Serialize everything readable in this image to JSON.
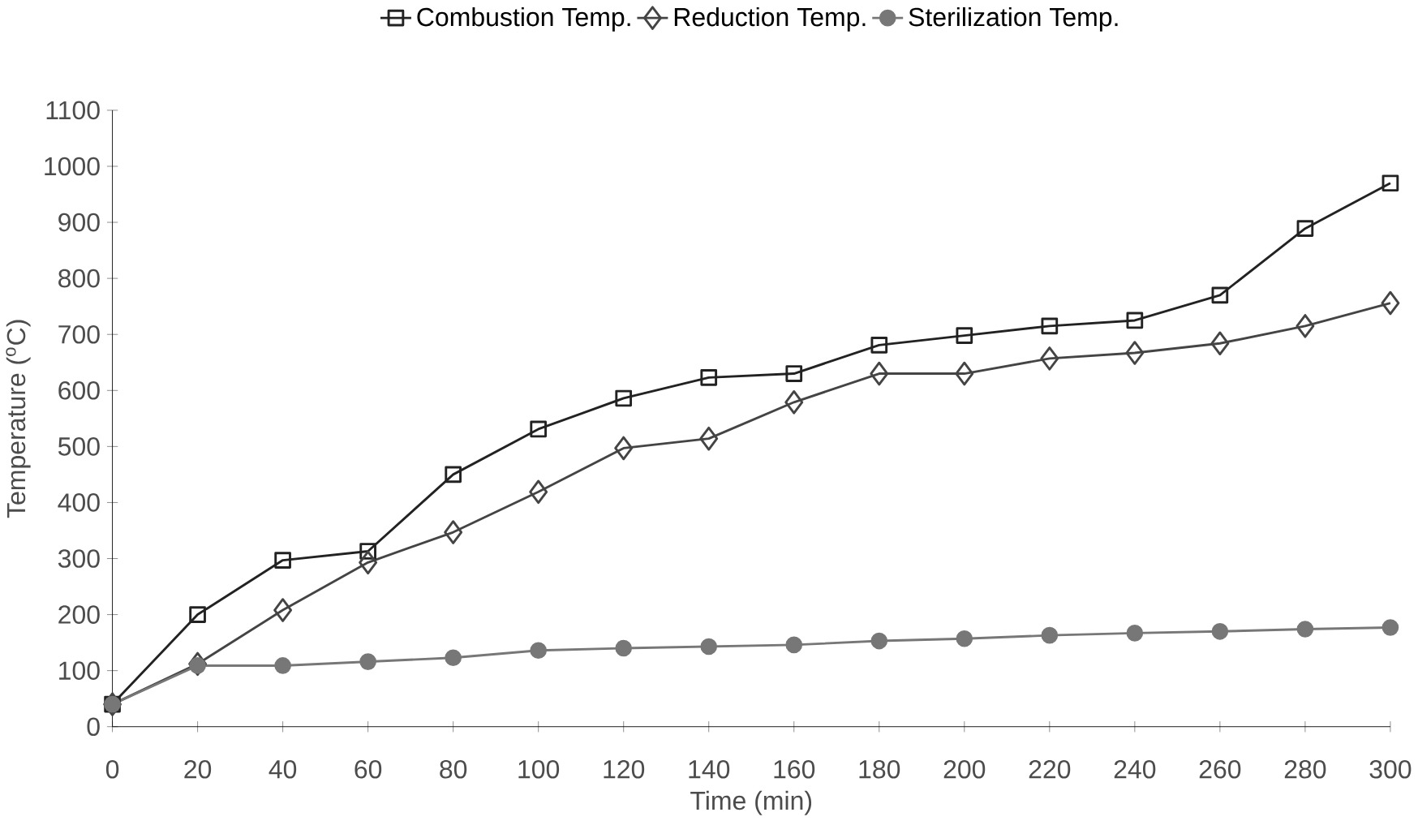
{
  "chart_data": {
    "type": "line",
    "xlabel": "Time (min)",
    "ylabel": "Temperature ($^{o}$C)",
    "x": [
      0,
      20,
      40,
      60,
      80,
      100,
      120,
      140,
      160,
      180,
      200,
      220,
      240,
      260,
      280,
      300
    ],
    "series": [
      {
        "name": "Combustion Temp.",
        "color": "#222222",
        "marker": "square",
        "values": [
          40,
          200,
          297,
          313,
          450,
          531,
          586,
          623,
          630,
          681,
          698,
          715,
          725,
          770,
          889,
          970
        ]
      },
      {
        "name": "Reduction Temp.",
        "color": "#444444",
        "marker": "diamond",
        "values": [
          40,
          112,
          208,
          293,
          347,
          419,
          497,
          514,
          579,
          630,
          630,
          657,
          667,
          684,
          715,
          756
        ]
      },
      {
        "name": "Sterilization Temp.",
        "color": "#777777",
        "marker": "circle",
        "values": [
          40,
          109,
          109,
          116,
          123,
          136,
          140,
          143,
          146,
          153,
          157,
          163,
          167,
          170,
          174,
          177
        ]
      }
    ],
    "xlim": [
      0,
      300
    ],
    "ylim": [
      0,
      1100
    ],
    "xticks": [
      0,
      20,
      40,
      60,
      80,
      100,
      120,
      140,
      160,
      180,
      200,
      220,
      240,
      260,
      280,
      300
    ],
    "yticks": [
      0,
      100,
      200,
      300,
      400,
      500,
      600,
      700,
      800,
      900,
      1000,
      1100
    ],
    "legend": "top",
    "grid": false,
    "line_style": "solid"
  }
}
